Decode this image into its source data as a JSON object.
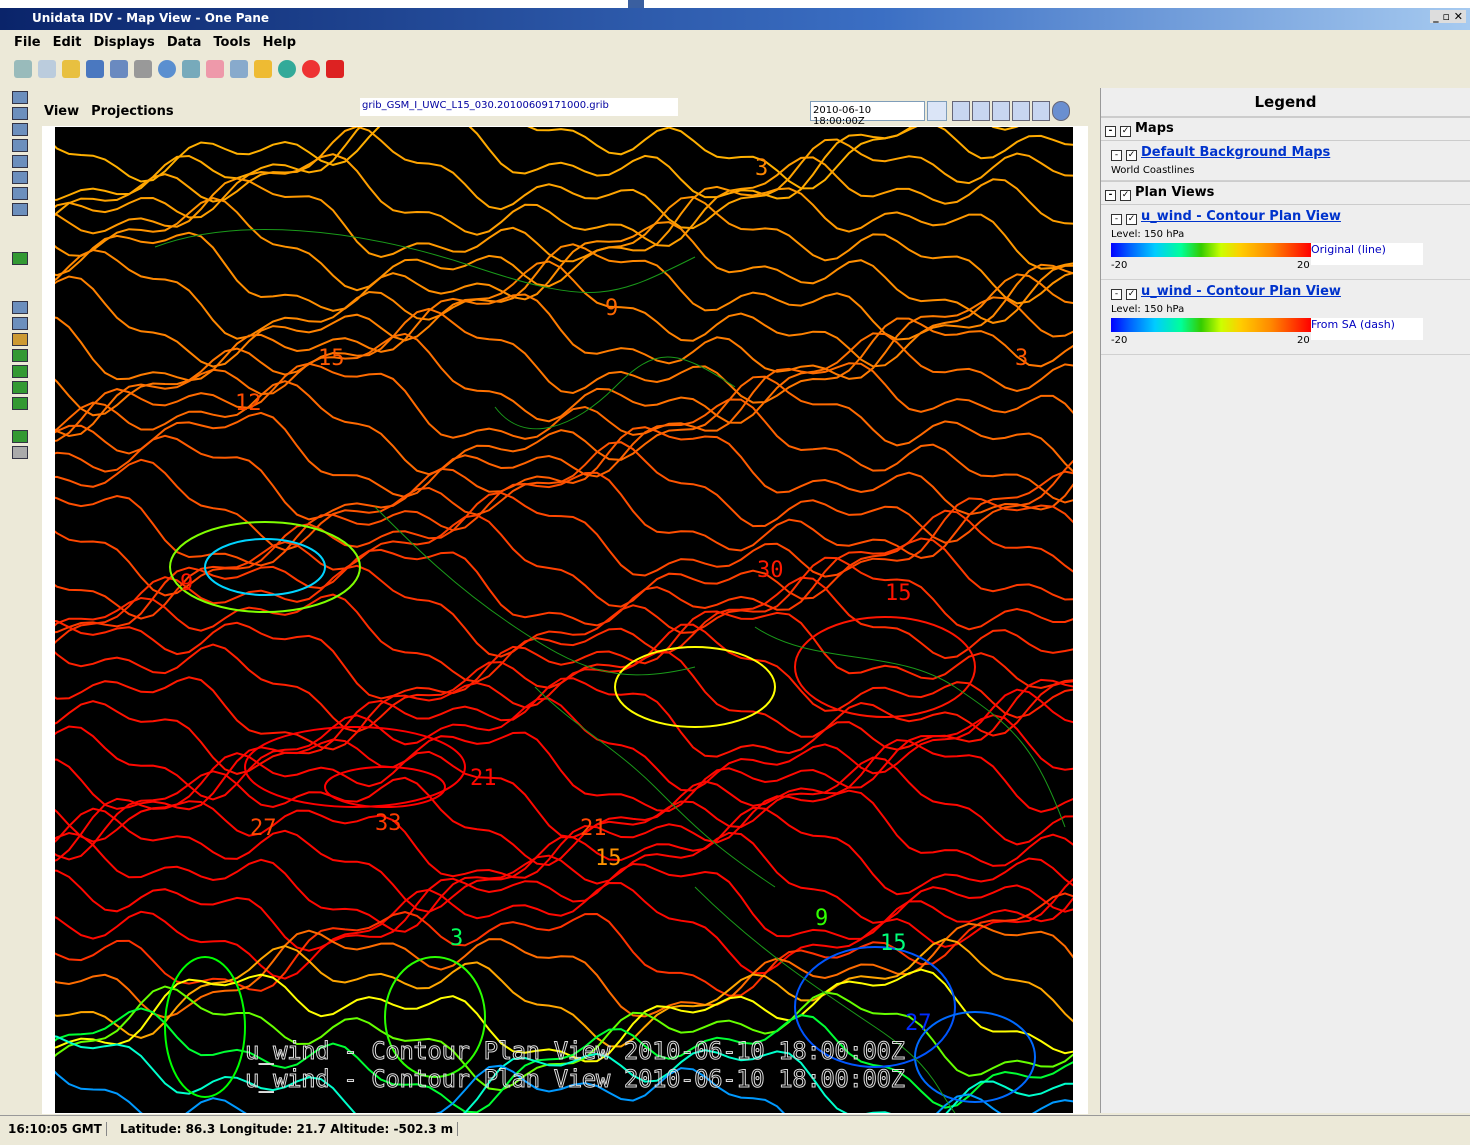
{
  "window": {
    "title": "Unidata IDV - Map View - One Pane"
  },
  "menu": [
    "File",
    "Edit",
    "Displays",
    "Data",
    "Tools",
    "Help"
  ],
  "view_menu": [
    "View",
    "Projections"
  ],
  "data_source": "grib_GSM_I_UWC_L15_030.20100609171000.grib",
  "time": "2010-06-10 18:00:00Z",
  "map": {
    "labels": [
      "3",
      "9",
      "15",
      "12",
      "30",
      "15",
      "9",
      "21",
      "33",
      "21",
      "15",
      "27",
      "3",
      "9",
      "15",
      "27",
      "3"
    ],
    "overlay": [
      "u_wind - Contour Plan View 2010-06-10 18:00:00Z",
      "u_wind - Contour Plan View 2010-06-10 18:00:00Z"
    ]
  },
  "legend": {
    "title": "Legend",
    "groups": [
      {
        "name": "Maps",
        "items": [
          {
            "name": "Default Background Maps",
            "detail": "World Coastlines"
          }
        ]
      },
      {
        "name": "Plan Views",
        "items": [
          {
            "name": "u_wind - Contour Plan View",
            "detail": "Level: 150 hPa",
            "colorbar": {
              "label": "Original (line)",
              "min": -20,
              "max": 20
            }
          },
          {
            "name": "u_wind - Contour Plan View",
            "detail": "Level: 150 hPa",
            "colorbar": {
              "label": "From SA (dash)",
              "min": -20,
              "max": 20
            }
          }
        ]
      }
    ]
  },
  "status": {
    "time": "16:10:05 GMT",
    "position": "Latitude: 86.3  Longitude: 21.7  Altitude: -502.3 m"
  }
}
